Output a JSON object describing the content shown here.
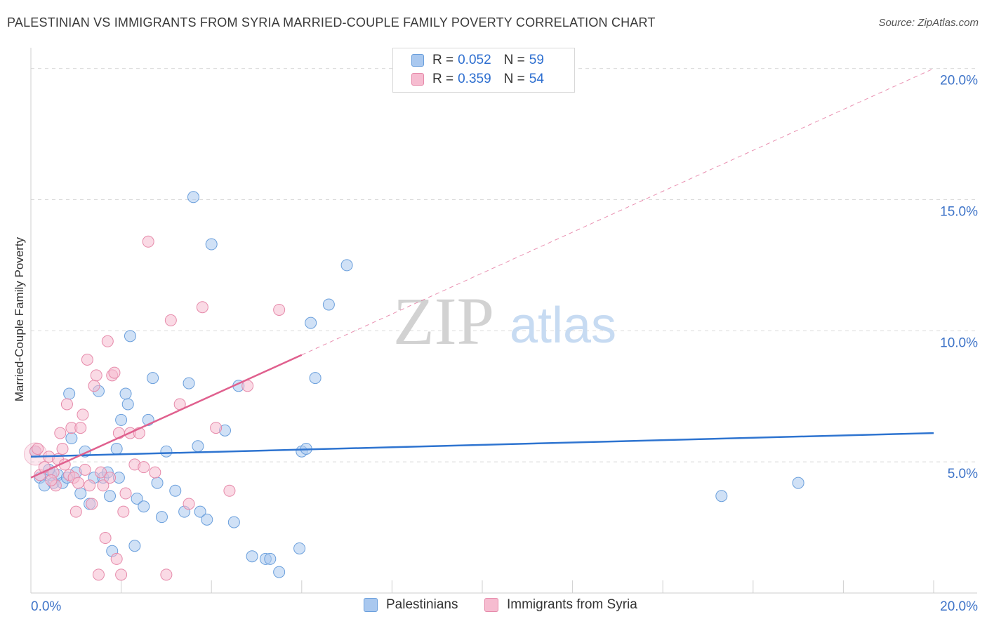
{
  "title": "PALESTINIAN VS IMMIGRANTS FROM SYRIA MARRIED-COUPLE FAMILY POVERTY CORRELATION CHART",
  "source": "Source: ZipAtlas.com",
  "watermark": {
    "zip": "ZIP",
    "atlas": "atlas"
  },
  "legend_top": {
    "row1": {
      "r_label": "R =",
      "r_value": "0.052",
      "n_label": "N =",
      "n_value": "59"
    },
    "row2": {
      "r_label": "R =",
      "r_value": "0.359",
      "n_label": "N =",
      "n_value": "54"
    }
  },
  "legend_bottom": {
    "series1": "Palestinians",
    "series2": "Immigrants from Syria"
  },
  "colors": {
    "blue_fill": "#a9c8ef",
    "blue_stroke": "#6a9fdc",
    "blue_line": "#2e74d0",
    "pink_fill": "#f6bcd0",
    "pink_stroke": "#e68aaa",
    "pink_line": "#e0608e",
    "axis_text": "#3d73c8",
    "grid": "#d9d9d9"
  },
  "chart_data": {
    "type": "scatter",
    "title": "PALESTINIAN VS IMMIGRANTS FROM SYRIA MARRIED-COUPLE FAMILY POVERTY CORRELATION CHART",
    "xlabel": "",
    "ylabel": "Married-Couple Family Poverty",
    "xlim": [
      0,
      20
    ],
    "ylim": [
      0,
      20.5
    ],
    "x_tick_labels": {
      "min": "0.0%",
      "max": "20.0%"
    },
    "y_ticks": [
      {
        "value": 5,
        "label": "5.0%"
      },
      {
        "value": 10,
        "label": "10.0%"
      },
      {
        "value": 15,
        "label": "15.0%"
      },
      {
        "value": 20,
        "label": "20.0%"
      }
    ],
    "series": [
      {
        "name": "Palestinians",
        "color": "#6a9fdc",
        "trend": {
          "x0": 0,
          "y0": 5.2,
          "x1": 20,
          "y1": 6.1,
          "dashed_from": null
        },
        "points": [
          [
            0.1,
            5.4
          ],
          [
            0.2,
            4.4
          ],
          [
            0.3,
            4.1
          ],
          [
            0.45,
            4.5
          ],
          [
            0.5,
            4.2
          ],
          [
            0.6,
            4.5
          ],
          [
            0.7,
            4.2
          ],
          [
            0.8,
            4.4
          ],
          [
            0.85,
            7.6
          ],
          [
            0.9,
            5.9
          ],
          [
            1.0,
            4.6
          ],
          [
            1.1,
            3.8
          ],
          [
            1.2,
            5.4
          ],
          [
            1.3,
            3.4
          ],
          [
            1.4,
            4.4
          ],
          [
            1.5,
            7.7
          ],
          [
            1.6,
            4.4
          ],
          [
            1.7,
            4.6
          ],
          [
            1.75,
            3.7
          ],
          [
            1.8,
            1.6
          ],
          [
            1.9,
            5.5
          ],
          [
            1.95,
            4.4
          ],
          [
            2.0,
            6.6
          ],
          [
            2.1,
            7.6
          ],
          [
            2.15,
            7.2
          ],
          [
            2.2,
            9.8
          ],
          [
            2.3,
            1.8
          ],
          [
            2.35,
            3.6
          ],
          [
            2.5,
            3.3
          ],
          [
            2.6,
            6.6
          ],
          [
            2.7,
            8.2
          ],
          [
            2.8,
            4.2
          ],
          [
            2.9,
            2.9
          ],
          [
            3.0,
            5.4
          ],
          [
            3.2,
            3.9
          ],
          [
            3.4,
            3.1
          ],
          [
            3.5,
            8.0
          ],
          [
            3.6,
            15.1
          ],
          [
            3.7,
            5.6
          ],
          [
            3.75,
            3.1
          ],
          [
            3.9,
            2.8
          ],
          [
            4.0,
            13.3
          ],
          [
            4.3,
            6.2
          ],
          [
            4.5,
            2.7
          ],
          [
            4.6,
            7.9
          ],
          [
            4.9,
            1.4
          ],
          [
            5.2,
            1.3
          ],
          [
            5.3,
            1.3
          ],
          [
            5.5,
            0.8
          ],
          [
            5.95,
            1.7
          ],
          [
            6.0,
            5.4
          ],
          [
            6.1,
            5.5
          ],
          [
            6.2,
            10.3
          ],
          [
            6.3,
            8.2
          ],
          [
            6.6,
            11.0
          ],
          [
            7.0,
            12.5
          ],
          [
            15.3,
            3.7
          ],
          [
            17.0,
            4.2
          ],
          [
            0.4,
            4.7
          ]
        ]
      },
      {
        "name": "Immigrants from Syria",
        "color": "#e68aaa",
        "trend": {
          "x0": 0,
          "y0": 4.4,
          "x1": 20,
          "y1": 20.0,
          "dashed_from": 6.0
        },
        "points": [
          [
            0.1,
            5.4
          ],
          [
            0.15,
            5.5
          ],
          [
            0.2,
            4.5
          ],
          [
            0.3,
            4.8
          ],
          [
            0.4,
            5.2
          ],
          [
            0.5,
            4.6
          ],
          [
            0.55,
            4.1
          ],
          [
            0.6,
            5.1
          ],
          [
            0.65,
            6.1
          ],
          [
            0.7,
            5.5
          ],
          [
            0.75,
            4.9
          ],
          [
            0.8,
            7.2
          ],
          [
            0.85,
            4.5
          ],
          [
            0.9,
            6.3
          ],
          [
            0.95,
            4.4
          ],
          [
            1.0,
            3.1
          ],
          [
            1.05,
            4.2
          ],
          [
            1.1,
            6.3
          ],
          [
            1.15,
            6.8
          ],
          [
            1.2,
            4.7
          ],
          [
            1.25,
            8.9
          ],
          [
            1.3,
            4.1
          ],
          [
            1.35,
            3.4
          ],
          [
            1.4,
            7.9
          ],
          [
            1.45,
            8.3
          ],
          [
            1.5,
            0.7
          ],
          [
            1.55,
            4.6
          ],
          [
            1.6,
            4.1
          ],
          [
            1.65,
            2.1
          ],
          [
            1.7,
            9.6
          ],
          [
            1.75,
            4.4
          ],
          [
            1.8,
            8.3
          ],
          [
            1.85,
            8.4
          ],
          [
            1.9,
            1.3
          ],
          [
            1.95,
            6.1
          ],
          [
            2.0,
            0.7
          ],
          [
            2.05,
            3.1
          ],
          [
            2.1,
            3.8
          ],
          [
            2.2,
            6.1
          ],
          [
            2.3,
            4.9
          ],
          [
            2.4,
            6.1
          ],
          [
            2.5,
            4.8
          ],
          [
            2.6,
            13.4
          ],
          [
            2.75,
            4.6
          ],
          [
            3.0,
            0.7
          ],
          [
            3.1,
            10.4
          ],
          [
            3.3,
            7.2
          ],
          [
            3.5,
            3.4
          ],
          [
            3.8,
            10.9
          ],
          [
            4.1,
            6.3
          ],
          [
            4.4,
            3.9
          ],
          [
            4.8,
            7.9
          ],
          [
            5.5,
            10.8
          ],
          [
            0.45,
            4.3
          ]
        ]
      }
    ]
  }
}
